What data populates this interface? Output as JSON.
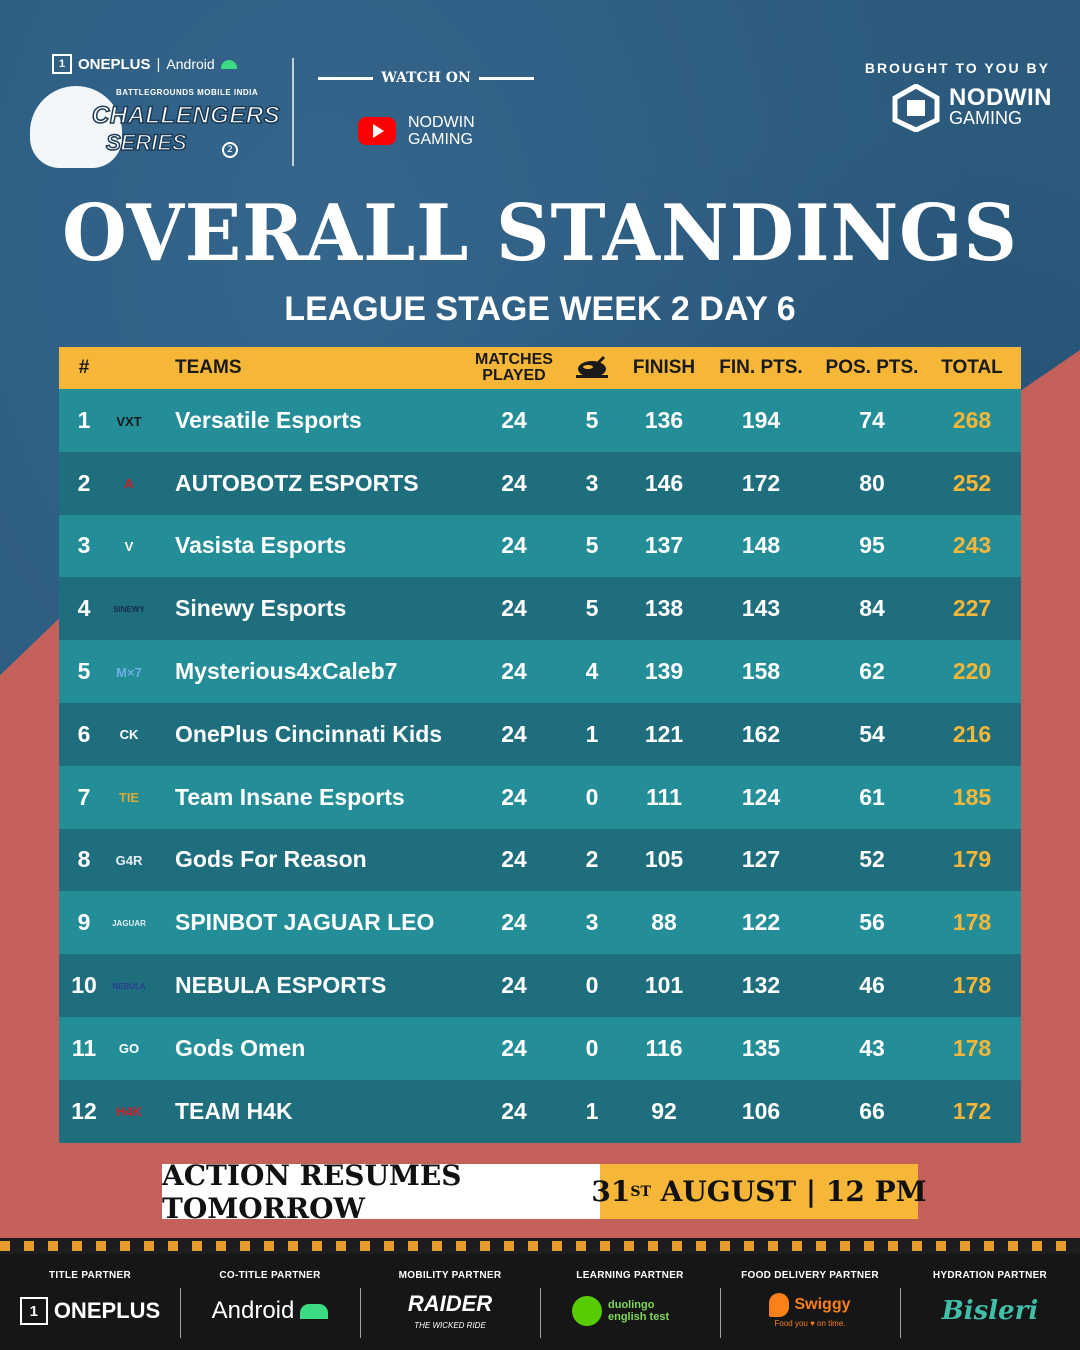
{
  "header": {
    "title_partner_brand": "ONEPLUS",
    "cotitle_brand": "Android",
    "event_game_line": "BATTLEGROUNDS MOBILE INDIA",
    "event_name_line1": "CHALLENGERS",
    "event_name_line2": "SERIES",
    "event_season": "2",
    "watch_on": "WATCH ON",
    "stream_line1": "NODWIN",
    "stream_line2": "GAMING",
    "brought_by": "BROUGHT TO YOU BY",
    "presenter_line1": "NODWIN",
    "presenter_line2": "GAMING"
  },
  "title": "OVERALL STANDINGS",
  "subtitle": "LEAGUE STAGE WEEK 2 DAY 6",
  "table": {
    "headers": {
      "rank": "#",
      "team": "TEAMS",
      "matches_l1": "MATCHES",
      "matches_l2": "PLAYED",
      "wins_icon": "chicken-dinner-icon",
      "finish": "FINISH",
      "fin_pts": "FIN. PTS.",
      "pos_pts": "POS. PTS.",
      "total": "TOTAL"
    },
    "rows": [
      {
        "rank": "1",
        "team": "Versatile Esports",
        "mp": "24",
        "wins": "5",
        "finish": "136",
        "fin_pts": "194",
        "pos_pts": "74",
        "total": "268",
        "logo_text": "VXT",
        "logo_color": "#1a1a1a"
      },
      {
        "rank": "2",
        "team": "AUTOBOTZ ESPORTS",
        "mp": "24",
        "wins": "3",
        "finish": "146",
        "fin_pts": "172",
        "pos_pts": "80",
        "total": "252",
        "logo_text": "A",
        "logo_color": "#c8202a"
      },
      {
        "rank": "3",
        "team": "Vasista Esports",
        "mp": "24",
        "wins": "5",
        "finish": "137",
        "fin_pts": "148",
        "pos_pts": "95",
        "total": "243",
        "logo_text": "V",
        "logo_color": "#ffffff"
      },
      {
        "rank": "4",
        "team": "Sinewy Esports",
        "mp": "24",
        "wins": "5",
        "finish": "138",
        "fin_pts": "143",
        "pos_pts": "84",
        "total": "227",
        "logo_text": "SINEWY",
        "logo_color": "#1a2a55"
      },
      {
        "rank": "5",
        "team": "Mysterious4xCaleb7",
        "mp": "24",
        "wins": "4",
        "finish": "139",
        "fin_pts": "158",
        "pos_pts": "62",
        "total": "220",
        "logo_text": "M×7",
        "logo_color": "#6ab0e6"
      },
      {
        "rank": "6",
        "team": "OnePlus Cincinnati Kids",
        "mp": "24",
        "wins": "1",
        "finish": "121",
        "fin_pts": "162",
        "pos_pts": "54",
        "total": "216",
        "logo_text": "CK",
        "logo_color": "#ffffff"
      },
      {
        "rank": "7",
        "team": "Team Insane Esports",
        "mp": "24",
        "wins": "0",
        "finish": "111",
        "fin_pts": "124",
        "pos_pts": "61",
        "total": "185",
        "logo_text": "TIE",
        "logo_color": "#d9a836"
      },
      {
        "rank": "8",
        "team": "Gods For Reason",
        "mp": "24",
        "wins": "2",
        "finish": "105",
        "fin_pts": "127",
        "pos_pts": "52",
        "total": "179",
        "logo_text": "G4R",
        "logo_color": "#e6eef5"
      },
      {
        "rank": "9",
        "team": "SPINBOT JAGUAR LEO",
        "mp": "24",
        "wins": "3",
        "finish": "88",
        "fin_pts": "122",
        "pos_pts": "56",
        "total": "178",
        "logo_text": "JAGUAR",
        "logo_color": "#e6eef5"
      },
      {
        "rank": "10",
        "team": "NEBULA ESPORTS",
        "mp": "24",
        "wins": "0",
        "finish": "101",
        "fin_pts": "132",
        "pos_pts": "46",
        "total": "178",
        "logo_text": "NEBULA",
        "logo_color": "#2a3d8f"
      },
      {
        "rank": "11",
        "team": "Gods Omen",
        "mp": "24",
        "wins": "0",
        "finish": "116",
        "fin_pts": "135",
        "pos_pts": "43",
        "total": "178",
        "logo_text": "GO",
        "logo_color": "#ffffff"
      },
      {
        "rank": "12",
        "team": "TEAM H4K",
        "mp": "24",
        "wins": "1",
        "finish": "92",
        "fin_pts": "106",
        "pos_pts": "66",
        "total": "172",
        "logo_text": "H4K",
        "logo_color": "#c8202a"
      }
    ]
  },
  "banner": {
    "left": "ACTION RESUMES TOMORROW",
    "date_num": "31",
    "date_sup": "ST",
    "date_rest": " AUGUST | 12 PM"
  },
  "partners": [
    {
      "label": "TITLE PARTNER",
      "brand": "ONEPLUS",
      "tagline": ""
    },
    {
      "label": "CO-TITLE PARTNER",
      "brand": "Android",
      "tagline": ""
    },
    {
      "label": "MOBILITY PARTNER",
      "brand": "RAIDER",
      "tagline": "THE WICKED RIDE"
    },
    {
      "label": "LEARNING PARTNER",
      "brand": "duolingo english test",
      "tagline": ""
    },
    {
      "label": "FOOD DELIVERY PARTNER",
      "brand": "Swiggy",
      "tagline": "Food you ♥ on time."
    },
    {
      "label": "HYDRATION PARTNER",
      "brand": "Bisleri",
      "tagline": ""
    }
  ],
  "colors": {
    "accent_yellow": "#f6b638",
    "row_light": "#238d98",
    "row_dark": "#1e6e7d",
    "background_blue": "#2b5a7d",
    "stripe_red": "#c4615b"
  }
}
